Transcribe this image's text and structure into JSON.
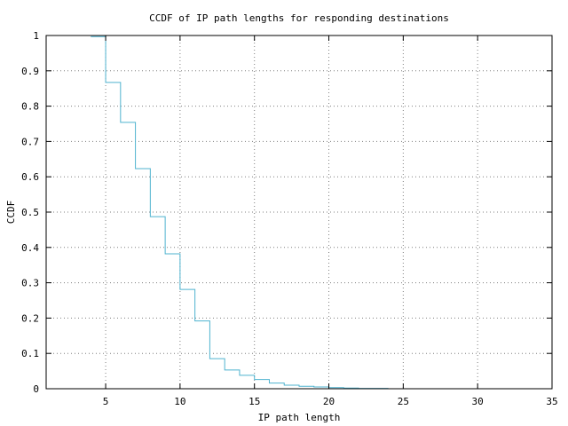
{
  "chart_data": {
    "type": "line",
    "title": "CCDF of IP path lengths for responding destinations",
    "xlabel": "IP path length",
    "ylabel": "CCDF",
    "xlim": [
      1,
      35
    ],
    "ylim": [
      0,
      1
    ],
    "grid": true,
    "line_style": "step",
    "color": "#4fb3cf",
    "x_ticks": [
      5,
      10,
      15,
      20,
      25,
      30,
      35
    ],
    "y_ticks": [
      0,
      0.1,
      0.2,
      0.3,
      0.4,
      0.5,
      0.6,
      0.7,
      0.8,
      0.9,
      1
    ],
    "x_tick_labels": [
      "5",
      "10",
      "15",
      "20",
      "25",
      "30",
      "35"
    ],
    "y_tick_labels": [
      "0",
      "0.1",
      "0.2",
      "0.3",
      "0.4",
      "0.5",
      "0.6",
      "0.7",
      "0.8",
      "0.9",
      "1"
    ],
    "series": [
      {
        "x": [
          4,
          5,
          6,
          7,
          8,
          9,
          10,
          11,
          12,
          13,
          14,
          15,
          16,
          17,
          18,
          19,
          20,
          21,
          22,
          23
        ],
        "y": [
          0.997,
          0.867,
          0.754,
          0.623,
          0.487,
          0.382,
          0.281,
          0.192,
          0.085,
          0.053,
          0.038,
          0.026,
          0.016,
          0.01,
          0.007,
          0.005,
          0.003,
          0.002,
          0.001,
          0.001
        ]
      }
    ]
  }
}
